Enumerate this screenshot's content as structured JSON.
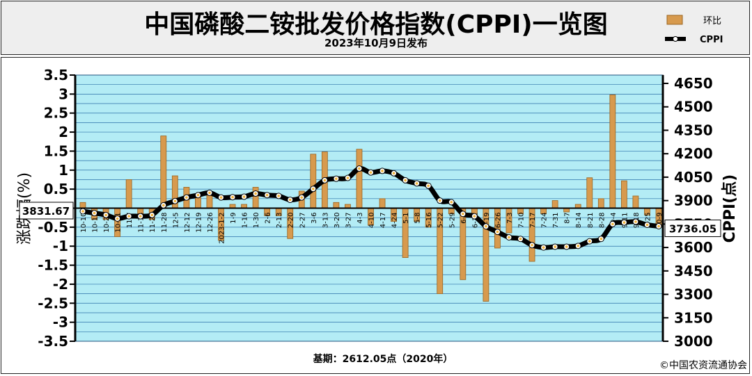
{
  "header": {
    "title": "中国磷酸二铵批发价格指数(CPPI)一览图",
    "subtitle": "2023年10月9日发布"
  },
  "footer": {
    "base_note": "基期：2612.05点（2020年）",
    "copyright": "©中国农资流通协会"
  },
  "colors": {
    "plot_bg": "#b3ecf5",
    "bar": "#d79a4e",
    "line": "#000000",
    "marker": "#f2b43a"
  },
  "chart_data": {
    "type": "bar+line",
    "categories": [
      "10-10",
      "10-17",
      "10-24",
      "10-31",
      "11-7",
      "11-14",
      "11-21",
      "11-28",
      "12-5",
      "12-12",
      "12-19",
      "12-26",
      "2023-1-2",
      "1-9",
      "1-16",
      "1-30",
      "2-6",
      "2-13",
      "2-20",
      "2-27",
      "3-6",
      "3-13",
      "3-20",
      "3-27",
      "4-3",
      "4-10",
      "4-17",
      "4-24",
      "5-1",
      "5-8",
      "5-16",
      "5-22",
      "5-29",
      "6-5",
      "6-12",
      "6-19",
      "6-26",
      "7-3",
      "7-10",
      "7-17",
      "7-24",
      "7-31",
      "8-7",
      "8-14",
      "8-21",
      "8-28",
      "9-4",
      "9-11",
      "9-18",
      "9-25",
      "10-9"
    ],
    "series": [
      {
        "name": "环比",
        "axis": "left",
        "type": "bar",
        "values": [
          0.15,
          -0.3,
          -0.3,
          -0.75,
          0.75,
          -0.2,
          -0.3,
          1.9,
          0.85,
          0.55,
          0.3,
          0.4,
          -0.85,
          0.1,
          0.1,
          0.55,
          -0.2,
          -0.2,
          -0.8,
          0.45,
          1.42,
          1.48,
          0.15,
          0.1,
          1.55,
          -0.45,
          0.25,
          -0.35,
          -1.3,
          -0.35,
          -0.5,
          -2.25,
          -0.15,
          -1.88,
          -0.2,
          -2.45,
          -1.05,
          -0.65,
          -0.15,
          -1.4,
          -0.15,
          0.2,
          -0.1,
          0.1,
          0.8,
          0.25,
          2.98,
          0.72,
          0.32,
          -0.18,
          -0.5
        ]
      },
      {
        "name": "CPPI",
        "axis": "right",
        "type": "line",
        "values": [
          3831.67,
          3820,
          3808,
          3785,
          3800,
          3800,
          3808,
          3870,
          3897,
          3920,
          3935,
          3950,
          3920,
          3922,
          3925,
          3945,
          3935,
          3930,
          3905,
          3920,
          3975,
          4030,
          4040,
          4045,
          4105,
          4080,
          4090,
          4075,
          4030,
          4010,
          3995,
          3900,
          3890,
          3815,
          3800,
          3735,
          3700,
          3665,
          3655,
          3615,
          3600,
          3605,
          3605,
          3610,
          3640,
          3655,
          3750,
          3760,
          3765,
          3745,
          3736.05
        ]
      }
    ],
    "ylabel_left": "涨跌幅(%)",
    "ylabel_right": "CPPI(点)",
    "ylim_left": [
      -3.5,
      3.5
    ],
    "ylim_right": [
      3000,
      4650
    ],
    "yticks_left": [
      "3.5",
      "3",
      "2.5",
      "2",
      "1.5",
      "1",
      "0.5",
      "0",
      "-0.5",
      "-1",
      "-1.5",
      "-2",
      "-2.5",
      "-3",
      "-3.5"
    ],
    "yticks_right": [
      "4650",
      "4500",
      "4350",
      "4200",
      "4050",
      "3900",
      "3750",
      "3600",
      "3450",
      "3300",
      "3150",
      "3000"
    ],
    "callout_first": "3831.67",
    "callout_last": "3736.05",
    "legend": {
      "placement": "top-right",
      "bar_label": "环比",
      "line_label": "CPPI"
    },
    "grid": true
  }
}
